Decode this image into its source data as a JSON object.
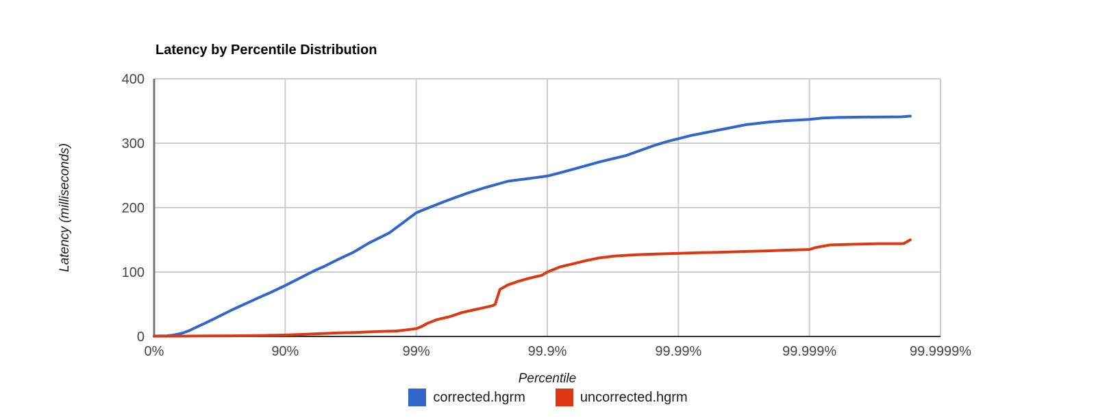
{
  "title": "Latency by Percentile Distribution",
  "colors": {
    "grid": "#cccccc",
    "axis_bottom": "#333333",
    "axis_left": "#777777",
    "tick_text": "#444444",
    "series_corrected": "#3366cc",
    "series_uncorrected": "#dc3912"
  },
  "chart_data": {
    "type": "line",
    "title": "Latency by Percentile Distribution",
    "xlabel": "Percentile",
    "ylabel": "Latency (milliseconds)",
    "x_scale": "log-percentile",
    "x_decades": 6,
    "x_ticks": [
      "0%",
      "90%",
      "99%",
      "99.9%",
      "99.99%",
      "99.999%",
      "99.9999%"
    ],
    "y_ticks": [
      0,
      100,
      200,
      300,
      400
    ],
    "ylim": [
      0,
      400
    ],
    "grid": true,
    "legend_position": "bottom",
    "series": [
      {
        "name": "corrected.hgrm",
        "color": "#3366cc",
        "points": [
          [
            0,
            0.5
          ],
          [
            10,
            0.7
          ],
          [
            20,
            1
          ],
          [
            28,
            2
          ],
          [
            34,
            3.5
          ],
          [
            40,
            5.5
          ],
          [
            46,
            9
          ],
          [
            52,
            14
          ],
          [
            58,
            19.5
          ],
          [
            64,
            26
          ],
          [
            70,
            34
          ],
          [
            75,
            42
          ],
          [
            80,
            51
          ],
          [
            84,
            60
          ],
          [
            87,
            68
          ],
          [
            90,
            79
          ],
          [
            92,
            89
          ],
          [
            94,
            102
          ],
          [
            95,
            109
          ],
          [
            96,
            119
          ],
          [
            97,
            131
          ],
          [
            97.7,
            145
          ],
          [
            98.4,
            161
          ],
          [
            99,
            192
          ],
          [
            99.2,
            200
          ],
          [
            99.4,
            210
          ],
          [
            99.5,
            216
          ],
          [
            99.6,
            223
          ],
          [
            99.7,
            231
          ],
          [
            99.8,
            241
          ],
          [
            99.87,
            246
          ],
          [
            99.9,
            249
          ],
          [
            99.92,
            254
          ],
          [
            99.94,
            261
          ],
          [
            99.96,
            271
          ],
          [
            99.975,
            281
          ],
          [
            99.98,
            288
          ],
          [
            99.985,
            297
          ],
          [
            99.988,
            303
          ],
          [
            99.99,
            307
          ],
          [
            99.992,
            312
          ],
          [
            99.994,
            317
          ],
          [
            99.996,
            324
          ],
          [
            99.997,
            329
          ],
          [
            99.998,
            333
          ],
          [
            99.9985,
            335
          ],
          [
            99.999,
            337
          ],
          [
            99.9992,
            339
          ],
          [
            99.9994,
            340
          ],
          [
            99.9996,
            340.5
          ],
          [
            99.9998,
            341
          ],
          [
            99.99983,
            342
          ]
        ]
      },
      {
        "name": "uncorrected.hgrm",
        "color": "#dc3912",
        "points": [
          [
            0,
            0.4
          ],
          [
            40,
            0.5
          ],
          [
            60,
            0.7
          ],
          [
            75,
            1
          ],
          [
            85,
            1.5
          ],
          [
            90,
            2.2
          ],
          [
            92,
            3
          ],
          [
            94,
            4
          ],
          [
            95,
            4.7
          ],
          [
            96,
            5.4
          ],
          [
            97,
            6.2
          ],
          [
            98,
            7.5
          ],
          [
            98.6,
            8.5
          ],
          [
            99,
            12
          ],
          [
            99.1,
            16
          ],
          [
            99.17,
            20
          ],
          [
            99.3,
            26
          ],
          [
            99.45,
            31
          ],
          [
            99.55,
            37
          ],
          [
            99.63,
            41
          ],
          [
            99.7,
            45
          ],
          [
            99.74,
            48
          ],
          [
            99.75,
            50
          ],
          [
            99.77,
            73
          ],
          [
            99.8,
            80
          ],
          [
            99.83,
            85
          ],
          [
            99.86,
            90
          ],
          [
            99.89,
            95
          ],
          [
            99.9,
            100
          ],
          [
            99.92,
            108
          ],
          [
            99.94,
            114
          ],
          [
            99.95,
            118
          ],
          [
            99.96,
            122
          ],
          [
            99.97,
            125
          ],
          [
            99.98,
            127
          ],
          [
            99.985,
            128
          ],
          [
            99.99,
            129
          ],
          [
            99.993,
            130
          ],
          [
            99.995,
            130.5
          ],
          [
            99.997,
            132
          ],
          [
            99.998,
            133
          ],
          [
            99.9985,
            134
          ],
          [
            99.999,
            135
          ],
          [
            99.9991,
            138
          ],
          [
            99.9993,
            142
          ],
          [
            99.9995,
            143
          ],
          [
            99.9997,
            144
          ],
          [
            99.9998,
            144
          ],
          [
            99.99981,
            144.5
          ],
          [
            99.99983,
            150
          ]
        ]
      }
    ]
  }
}
